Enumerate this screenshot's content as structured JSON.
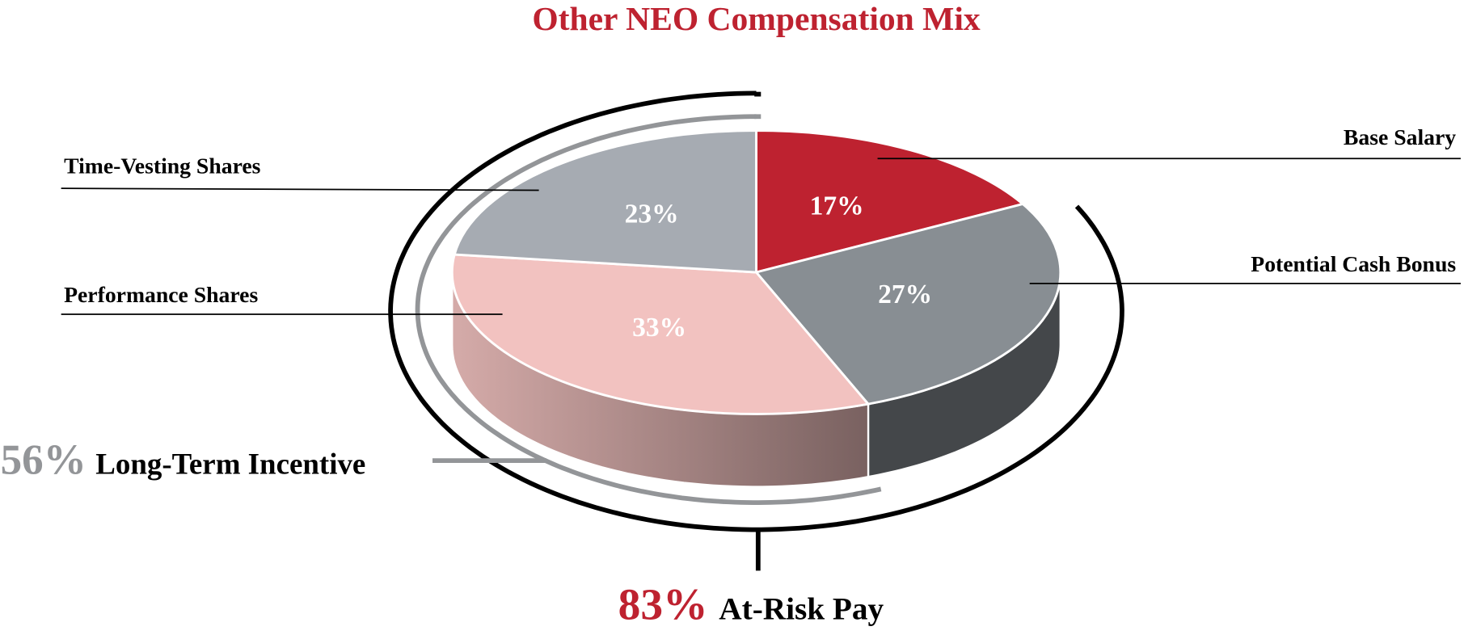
{
  "chart_data": {
    "type": "pie",
    "title": "Other NEO Compensation Mix",
    "categories": [
      "Base Salary",
      "Potential Cash Bonus",
      "Performance Shares",
      "Time-Vesting Shares"
    ],
    "values": [
      17,
      27,
      33,
      23
    ],
    "value_labels": [
      "17%",
      "27%",
      "33%",
      "23%"
    ],
    "colors": [
      "#be2230",
      "#888e93",
      "#f2c2c0",
      "#a6abb2"
    ],
    "annotations": [
      {
        "value": 56,
        "label": "56%",
        "text": "Long-Term Incentive",
        "color": "#939598"
      },
      {
        "value": 83,
        "label": "83%",
        "text": "At-Risk Pay",
        "color": "#be2230"
      }
    ]
  }
}
